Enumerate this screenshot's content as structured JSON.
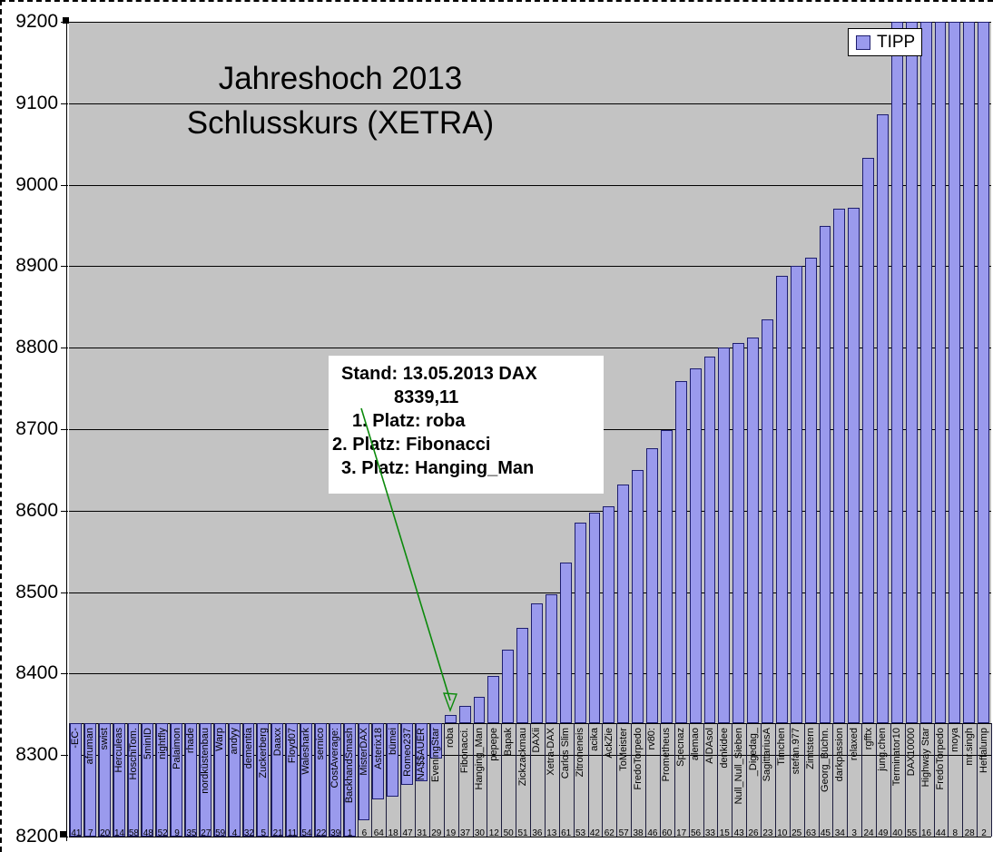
{
  "title": {
    "line1": "Jahreshoch 2013",
    "line2": "Schlusskurs (XETRA)"
  },
  "legend": {
    "label": "TIPP"
  },
  "annotation": {
    "lines": [
      "Stand: 13.05.2013 DAX",
      "8339,11",
      "1. Platz: roba",
      "2. Platz: Fibonacci",
      "3. Platz: Hanging_Man"
    ]
  },
  "colors": {
    "bar_fill": "#9a9aed",
    "bar_border": "#1e1e6e",
    "plot_bg": "#c3c3c3",
    "gridline": "#000000",
    "arrow_green": "#0b8a0b"
  },
  "chart_data": {
    "type": "bar",
    "title": "Jahreshoch 2013 Schlusskurs (XETRA)",
    "series_name": "TIPP",
    "ylim": [
      8200,
      9200
    ],
    "yticks": [
      9200,
      9100,
      9000,
      8900,
      8800,
      8700,
      8600,
      8500,
      8400,
      8300,
      8200
    ],
    "baseline": 8339.11,
    "grid": true,
    "values_note": "bars drawn from baseline 8339.11 (DAX level 13.05.2013); first 20 bars clipped at axis min 8200, last 7 bars clipped at axis max 9200",
    "categories": [
      "-EC-",
      "afruman",
      "swist",
      "Herculeas",
      "HoschiTom.",
      "5minID",
      "nightfly",
      "Palaimon",
      "rhade",
      "nordküstenbau",
      "Warp",
      "andyy",
      "dementia",
      "Zuckerberg",
      "Daaxx",
      "Floyd07",
      "Waleshark",
      "sernico",
      "CostAverage:",
      "BackhandSmash",
      "MisterDAX",
      "Asterix18",
      "bümei",
      "Romeo237",
      "NA$$AUER",
      "EveningStar",
      "roba",
      "Fibonacci.",
      "Hanging_Man",
      "pepepe",
      "Bapak",
      "Zickzackmau",
      "DAXii",
      "Xetra-DAX",
      "Carlos Slim",
      "Zitroneneis",
      "acika",
      "AckZie",
      "ToMeister",
      "FredoTorpedo",
      "rv80:",
      "Prometheus",
      "Specnaz",
      "alemao",
      "AIDAsol",
      "denkidee",
      "Null_Null_Sieben",
      "_Digedag_",
      "SagittariusA",
      "Timchen",
      "stefan.977",
      "Zimtstern",
      "Georg_Büchn.",
      "darkpassion",
      "relaxed",
      "rgfftx",
      "jung.chen",
      "Terminator10",
      "DAX10000",
      "Highway Star",
      "FredoTorpedo",
      "moya",
      "mr.singh",
      "Heffalump"
    ],
    "entry_numbers": [
      41,
      7,
      20,
      14,
      58,
      48,
      52,
      9,
      35,
      27,
      59,
      4,
      32,
      5,
      21,
      11,
      54,
      22,
      39,
      1,
      6,
      64,
      18,
      47,
      31,
      29,
      19,
      37,
      30,
      12,
      50,
      51,
      36,
      13,
      61,
      53,
      42,
      62,
      57,
      38,
      46,
      60,
      17,
      56,
      33,
      15,
      43,
      26,
      23,
      10,
      25,
      63,
      45,
      34,
      3,
      24,
      49,
      40,
      55,
      16,
      44,
      8,
      28,
      2
    ],
    "values": [
      8200,
      8200,
      8200,
      8200,
      8200,
      8200,
      8200,
      8200,
      8200,
      8200,
      8200,
      8200,
      8200,
      8200,
      8200,
      8200,
      8200,
      8200,
      8200,
      8200,
      8220,
      8246,
      8249,
      8263,
      8268,
      8296,
      8349,
      8360,
      8371,
      8397,
      8429,
      8456,
      8486,
      8497,
      8536,
      8585,
      8598,
      8605,
      8632,
      8650,
      8677,
      8699,
      8759,
      8775,
      8789,
      8800,
      8806,
      8813,
      8835,
      8888,
      8900,
      8911,
      8949,
      8971,
      8972,
      9033,
      9086,
      9200,
      9200,
      9200,
      9200,
      9200,
      9200,
      9200
    ]
  }
}
